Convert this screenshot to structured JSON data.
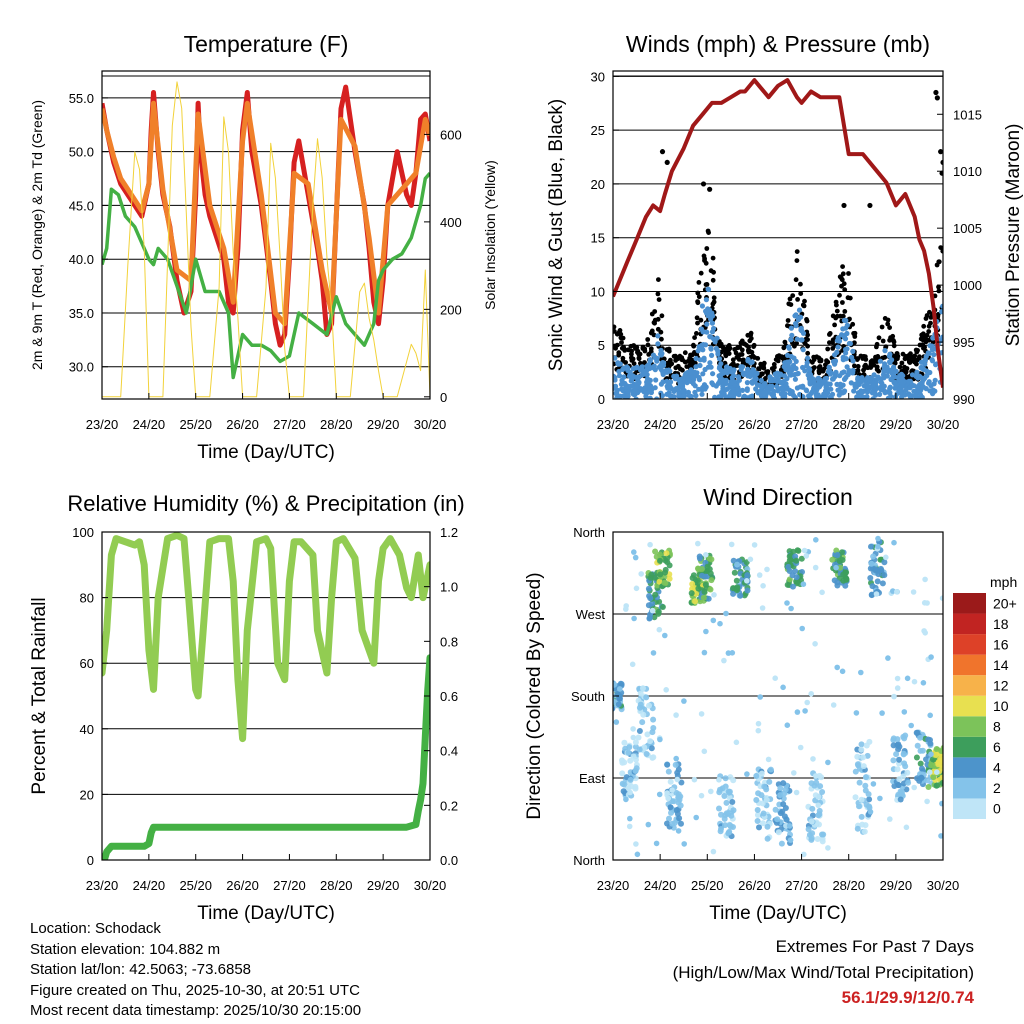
{
  "chart_data": [
    {
      "id": "temperature",
      "type": "line",
      "title": "Temperature (F)",
      "xlabel": "Time (Day/UTC)",
      "ylabel": "2m & 9m T (Red, Orange) & 2m Td (Green)",
      "y2label": "Solar Insolation (Yellow)",
      "xticks": [
        "23/20",
        "24/20",
        "25/20",
        "26/20",
        "27/20",
        "28/20",
        "29/20",
        "30/20"
      ],
      "xlim": [
        0,
        7
      ],
      "ylim": [
        27.0,
        57.5
      ],
      "yticks": [
        "30.0",
        "35.0",
        "40.0",
        "45.0",
        "50.0",
        "55.0"
      ],
      "y2lim": [
        -5,
        745
      ],
      "y2ticks": [
        "0",
        "200",
        "400",
        "600"
      ],
      "series": [
        {
          "name": "2m T",
          "color": "#d62020",
          "x": [
            0,
            0.1,
            0.25,
            0.4,
            0.55,
            0.7,
            0.85,
            1.0,
            1.05,
            1.1,
            1.2,
            1.3,
            1.45,
            1.6,
            1.75,
            1.9,
            2.0,
            2.05,
            2.1,
            2.2,
            2.3,
            2.45,
            2.6,
            2.7,
            2.8,
            2.9,
            3.0,
            3.1,
            3.2,
            3.4,
            3.6,
            3.7,
            3.8,
            3.9,
            4.0,
            4.1,
            4.2,
            4.4,
            4.6,
            4.7,
            4.8,
            4.9,
            5.0,
            5.1,
            5.2,
            5.4,
            5.6,
            5.7,
            5.8,
            5.9,
            6.0,
            6.1,
            6.3,
            6.5,
            6.6,
            6.7,
            6.8,
            6.9,
            7.0
          ],
          "y": [
            54.5,
            52,
            49,
            47,
            46,
            45,
            44,
            47,
            52,
            55.5,
            50,
            46,
            43,
            38,
            35,
            37,
            46,
            54.5,
            50,
            46,
            44,
            42,
            40,
            36,
            35,
            41,
            52,
            55.5,
            50,
            45,
            38,
            34,
            32,
            33,
            40,
            49,
            51,
            46,
            41,
            38,
            33,
            34,
            44,
            54,
            56,
            50,
            45,
            41,
            36,
            34,
            38,
            45,
            50,
            46,
            45,
            48,
            53,
            53.5,
            51
          ]
        },
        {
          "name": "9m T",
          "color": "#f0802a",
          "x": [
            0,
            0.1,
            0.25,
            0.4,
            0.55,
            0.7,
            0.85,
            1.0,
            1.1,
            1.3,
            1.6,
            1.9,
            2.05,
            2.3,
            2.6,
            2.8,
            3.0,
            3.1,
            3.4,
            3.7,
            3.9,
            4.1,
            4.4,
            4.7,
            4.9,
            5.1,
            5.4,
            5.7,
            5.9,
            6.1,
            6.5,
            6.7,
            6.9,
            7.0
          ],
          "y": [
            54,
            52,
            49.5,
            47.5,
            46.5,
            45.5,
            44.5,
            47,
            54.5,
            46.5,
            39,
            38,
            53.5,
            45,
            41,
            36,
            51,
            54.5,
            46,
            35,
            34,
            48,
            47,
            39,
            35,
            53,
            50.5,
            42,
            35,
            45,
            47,
            48,
            53,
            51.5
          ]
        },
        {
          "name": "2m Td",
          "color": "#44b044",
          "x": [
            0,
            0.1,
            0.2,
            0.35,
            0.5,
            0.7,
            0.9,
            1.0,
            1.1,
            1.2,
            1.4,
            1.6,
            1.8,
            2.0,
            2.2,
            2.5,
            2.7,
            2.8,
            3.0,
            3.2,
            3.4,
            3.6,
            3.8,
            4.0,
            4.2,
            4.5,
            4.8,
            5.0,
            5.2,
            5.4,
            5.6,
            5.8,
            5.9,
            6.0,
            6.2,
            6.4,
            6.6,
            6.8,
            6.9,
            7.0
          ],
          "y": [
            39.5,
            41,
            46.5,
            46,
            44,
            43,
            41,
            40,
            39.5,
            41,
            40,
            37.5,
            35,
            40,
            37,
            37,
            35,
            29,
            33,
            32,
            32,
            31.5,
            30.5,
            31,
            35,
            34,
            33,
            36.5,
            34,
            33,
            32,
            34,
            38,
            39,
            40,
            40.5,
            42,
            45,
            47.5,
            48
          ]
        },
        {
          "name": "Solar Insolation",
          "color": "#f2d23a",
          "axis": "y2",
          "x": [
            0,
            0.4,
            0.55,
            0.7,
            0.8,
            0.9,
            1.0,
            1.3,
            1.5,
            1.6,
            1.7,
            1.8,
            1.9,
            2.0,
            2.3,
            2.5,
            2.6,
            2.7,
            2.8,
            2.9,
            3.0,
            3.3,
            3.5,
            3.6,
            3.7,
            3.8,
            3.9,
            4.0,
            4.3,
            4.5,
            4.6,
            4.7,
            4.8,
            4.9,
            5.0,
            5.3,
            5.5,
            5.6,
            5.7,
            5.8,
            5.9,
            6.0,
            6.3,
            6.5,
            6.6,
            6.7,
            6.8,
            6.9,
            7.0
          ],
          "y": [
            0,
            0,
            300,
            560,
            520,
            340,
            0,
            0,
            620,
            720,
            660,
            420,
            160,
            0,
            0,
            250,
            640,
            560,
            330,
            180,
            0,
            0,
            250,
            580,
            500,
            320,
            110,
            0,
            0,
            440,
            590,
            500,
            320,
            200,
            0,
            0,
            240,
            260,
            180,
            130,
            60,
            0,
            0,
            80,
            120,
            100,
            60,
            290,
            0
          ]
        }
      ]
    },
    {
      "id": "winds",
      "type": "scatter",
      "title": "Winds (mph) & Pressure (mb)",
      "xlabel": "Time (Day/UTC)",
      "ylabel": "Sonic Wind & Gust (Blue, Black)",
      "y2label": "Station Pressure (Maroon)",
      "xticks": [
        "23/20",
        "24/20",
        "25/20",
        "26/20",
        "27/20",
        "28/20",
        "29/20",
        "30/20"
      ],
      "xlim": [
        0,
        7
      ],
      "ylim": [
        0,
        30.5
      ],
      "yticks": [
        "0",
        "5",
        "10",
        "15",
        "20",
        "25",
        "30"
      ],
      "y2lim": [
        990,
        1018.8
      ],
      "y2ticks": [
        "990",
        "995",
        "1000",
        "1005",
        "1010",
        "1015"
      ],
      "wind_envelope": {
        "x": [
          0,
          0.3,
          0.7,
          0.95,
          1.1,
          1.4,
          1.7,
          1.9,
          2.05,
          2.3,
          2.6,
          2.9,
          3.1,
          3.3,
          3.6,
          3.8,
          3.95,
          4.2,
          4.5,
          4.8,
          4.95,
          5.2,
          5.5,
          5.8,
          6.0,
          6.2,
          6.5,
          6.8,
          7.0
        ],
        "y": [
          4,
          3,
          3,
          6,
          3,
          2,
          3,
          9,
          11,
          3,
          3,
          4,
          2,
          2,
          3,
          7,
          9,
          2,
          2,
          6,
          8,
          2,
          2,
          5,
          3,
          2,
          3,
          6,
          10
        ]
      },
      "gust_envelope": {
        "x": [
          0,
          0.3,
          0.7,
          0.95,
          1.1,
          1.4,
          1.7,
          1.9,
          2.05,
          2.3,
          2.6,
          2.9,
          3.1,
          3.3,
          3.6,
          3.8,
          3.95,
          4.2,
          4.5,
          4.8,
          4.95,
          5.2,
          5.5,
          5.8,
          6.0,
          6.2,
          6.5,
          6.8,
          7.0
        ],
        "y": [
          8,
          5,
          5,
          12,
          5,
          4,
          5,
          15,
          17,
          5,
          5,
          7,
          4,
          3,
          5,
          12,
          15,
          4,
          4,
          11,
          14,
          4,
          4,
          8,
          5,
          4,
          5,
          11,
          16
        ]
      },
      "gust_outliers": {
        "x": [
          1.05,
          1.15,
          1.92,
          2.05,
          4.9,
          5.45,
          6.85,
          6.88,
          6.95,
          6.98,
          7.0
        ],
        "y": [
          23,
          22,
          20,
          19.5,
          18,
          18,
          28.5,
          28,
          23,
          21,
          22
        ]
      },
      "series": [
        {
          "name": "Station Pressure",
          "color": "#a01818",
          "axis": "y2",
          "x": [
            0,
            0.1,
            0.2,
            0.3,
            0.5,
            0.7,
            0.85,
            1.0,
            1.1,
            1.25,
            1.5,
            1.7,
            1.9,
            2.1,
            2.3,
            2.5,
            2.7,
            2.8,
            3.0,
            3.1,
            3.3,
            3.5,
            3.7,
            3.9,
            4.0,
            4.2,
            4.4,
            4.6,
            4.8,
            5.0,
            5.3,
            5.6,
            5.8,
            6.0,
            6.2,
            6.4,
            6.5,
            6.6,
            6.7,
            6.8,
            6.9,
            7.0
          ],
          "y": [
            999,
            1000,
            1001,
            1002,
            1004,
            1006,
            1007,
            1006.5,
            1008,
            1010,
            1012,
            1014,
            1015,
            1016,
            1016,
            1016.5,
            1017,
            1017,
            1018,
            1017.5,
            1016.5,
            1017.5,
            1018,
            1016.5,
            1016,
            1017,
            1016.5,
            1016.5,
            1016.5,
            1011.5,
            1011.5,
            1010,
            1009,
            1007,
            1008,
            1006,
            1004,
            1003,
            1001,
            998,
            994,
            991
          ]
        }
      ]
    },
    {
      "id": "humidity",
      "type": "line",
      "title": "Relative Humidity (%) & Precipitation (in)",
      "xlabel": "Time (Day/UTC)",
      "ylabel": "Percent & Total Rainfall",
      "xticks": [
        "23/20",
        "24/20",
        "25/20",
        "26/20",
        "27/20",
        "28/20",
        "29/20",
        "30/20"
      ],
      "xlim": [
        0,
        7
      ],
      "ylim": [
        0,
        100
      ],
      "yticks": [
        "0",
        "20",
        "40",
        "60",
        "80",
        "100"
      ],
      "y2lim": [
        0,
        1.2
      ],
      "y2ticks": [
        "0.0",
        "0.2",
        "0.4",
        "0.6",
        "0.8",
        "1.0",
        "1.2"
      ],
      "series": [
        {
          "name": "Relative Humidity",
          "color": "#92cc52",
          "x": [
            0,
            0.1,
            0.2,
            0.3,
            0.5,
            0.7,
            0.8,
            0.9,
            1.0,
            1.1,
            1.2,
            1.4,
            1.6,
            1.75,
            1.85,
            2.0,
            2.05,
            2.15,
            2.3,
            2.5,
            2.7,
            2.8,
            2.9,
            3.0,
            3.1,
            3.3,
            3.5,
            3.6,
            3.75,
            3.9,
            4.0,
            4.1,
            4.25,
            4.5,
            4.6,
            4.8,
            4.9,
            5.0,
            5.15,
            5.4,
            5.55,
            5.8,
            5.9,
            6.0,
            6.15,
            6.35,
            6.5,
            6.6,
            6.75,
            6.85,
            7.0
          ],
          "y": [
            57,
            70,
            93,
            98,
            97,
            96,
            97,
            90,
            64,
            52,
            80,
            98,
            99,
            98,
            80,
            52,
            50,
            68,
            97,
            98,
            98,
            85,
            55,
            37,
            70,
            97,
            98,
            95,
            60,
            55,
            85,
            97,
            97,
            93,
            70,
            57,
            80,
            97,
            98,
            92,
            70,
            60,
            85,
            95,
            98,
            93,
            83,
            80,
            93,
            80,
            90
          ]
        },
        {
          "name": "Total Rainfall",
          "color": "#44b044",
          "axis": "y2",
          "x": [
            0,
            0.05,
            0.1,
            0.2,
            0.6,
            0.9,
            1.0,
            1.05,
            1.1,
            2.0,
            3.0,
            4.0,
            5.0,
            6.0,
            6.5,
            6.7,
            6.75,
            6.8,
            6.85,
            6.9,
            6.95,
            7.0
          ],
          "y": [
            0,
            0,
            0.03,
            0.05,
            0.05,
            0.05,
            0.06,
            0.1,
            0.12,
            0.12,
            0.12,
            0.12,
            0.12,
            0.12,
            0.12,
            0.13,
            0.18,
            0.22,
            0.28,
            0.45,
            0.62,
            0.74
          ]
        }
      ]
    },
    {
      "id": "wind-direction",
      "type": "scatter",
      "title": "Wind Direction",
      "xlabel": "Time (Day/UTC)",
      "ylabel": "Direction (Colored By Speed)",
      "xticks": [
        "23/20",
        "24/20",
        "25/20",
        "26/20",
        "27/20",
        "28/20",
        "29/20",
        "30/20"
      ],
      "xlim": [
        0,
        7
      ],
      "ylim": [
        0,
        360
      ],
      "yticks": [
        "North",
        "East",
        "South",
        "West",
        "North"
      ],
      "clusters": [
        {
          "x": 0.05,
          "dir": 180,
          "spread": 15,
          "speed": 4
        },
        {
          "x": 0.35,
          "dir": 100,
          "spread": 30,
          "speed": 2
        },
        {
          "x": 0.7,
          "dir": 150,
          "spread": 40,
          "speed": 2
        },
        {
          "x": 0.9,
          "dir": 290,
          "spread": 25,
          "speed": 6
        },
        {
          "x": 1.05,
          "dir": 320,
          "spread": 20,
          "speed": 8
        },
        {
          "x": 1.3,
          "dir": 70,
          "spread": 35,
          "speed": 3
        },
        {
          "x": 1.8,
          "dir": 300,
          "spread": 20,
          "speed": 8
        },
        {
          "x": 1.95,
          "dir": 310,
          "spread": 25,
          "speed": 6
        },
        {
          "x": 2.4,
          "dir": 60,
          "spread": 35,
          "speed": 2
        },
        {
          "x": 2.7,
          "dir": 310,
          "spread": 20,
          "speed": 5
        },
        {
          "x": 3.2,
          "dir": 60,
          "spread": 40,
          "speed": 2
        },
        {
          "x": 3.6,
          "dir": 50,
          "spread": 35,
          "speed": 3
        },
        {
          "x": 3.85,
          "dir": 320,
          "spread": 20,
          "speed": 6
        },
        {
          "x": 4.3,
          "dir": 60,
          "spread": 40,
          "speed": 2
        },
        {
          "x": 4.8,
          "dir": 320,
          "spread": 20,
          "speed": 6
        },
        {
          "x": 5.3,
          "dir": 80,
          "spread": 50,
          "speed": 2
        },
        {
          "x": 5.6,
          "dir": 320,
          "spread": 30,
          "speed": 4
        },
        {
          "x": 6.1,
          "dir": 100,
          "spread": 40,
          "speed": 3
        },
        {
          "x": 6.6,
          "dir": 110,
          "spread": 30,
          "speed": 4
        },
        {
          "x": 6.85,
          "dir": 100,
          "spread": 20,
          "speed": 8
        },
        {
          "x": 6.95,
          "dir": 110,
          "spread": 15,
          "speed": 10
        }
      ],
      "colorbar": {
        "label": "mph",
        "labels": [
          "0",
          "2",
          "4",
          "6",
          "8",
          "10",
          "12",
          "14",
          "16",
          "18",
          "20+"
        ],
        "colors": [
          "#bfe5f7",
          "#84c3ea",
          "#4d94cb",
          "#3d9e5c",
          "#7cc35a",
          "#e8e050",
          "#f7b24a",
          "#f0742c",
          "#dd4128",
          "#c12422",
          "#9b1a1a"
        ]
      }
    }
  ],
  "info": {
    "location": "Location: Schodack",
    "elevation": "Station elevation: 104.882 m",
    "latlon": "Station lat/lon: 42.5063; -73.6858",
    "created": "Figure created on Thu, 2025-10-30, at 20:51 UTC",
    "recent": "Most recent data timestamp: 2025/10/30 20:15:00"
  },
  "extremes": {
    "title": "Extremes For Past 7 Days",
    "subtitle": "(High/Low/Max Wind/Total Precipitation)",
    "values": "56.1/29.9/12/0.74"
  }
}
